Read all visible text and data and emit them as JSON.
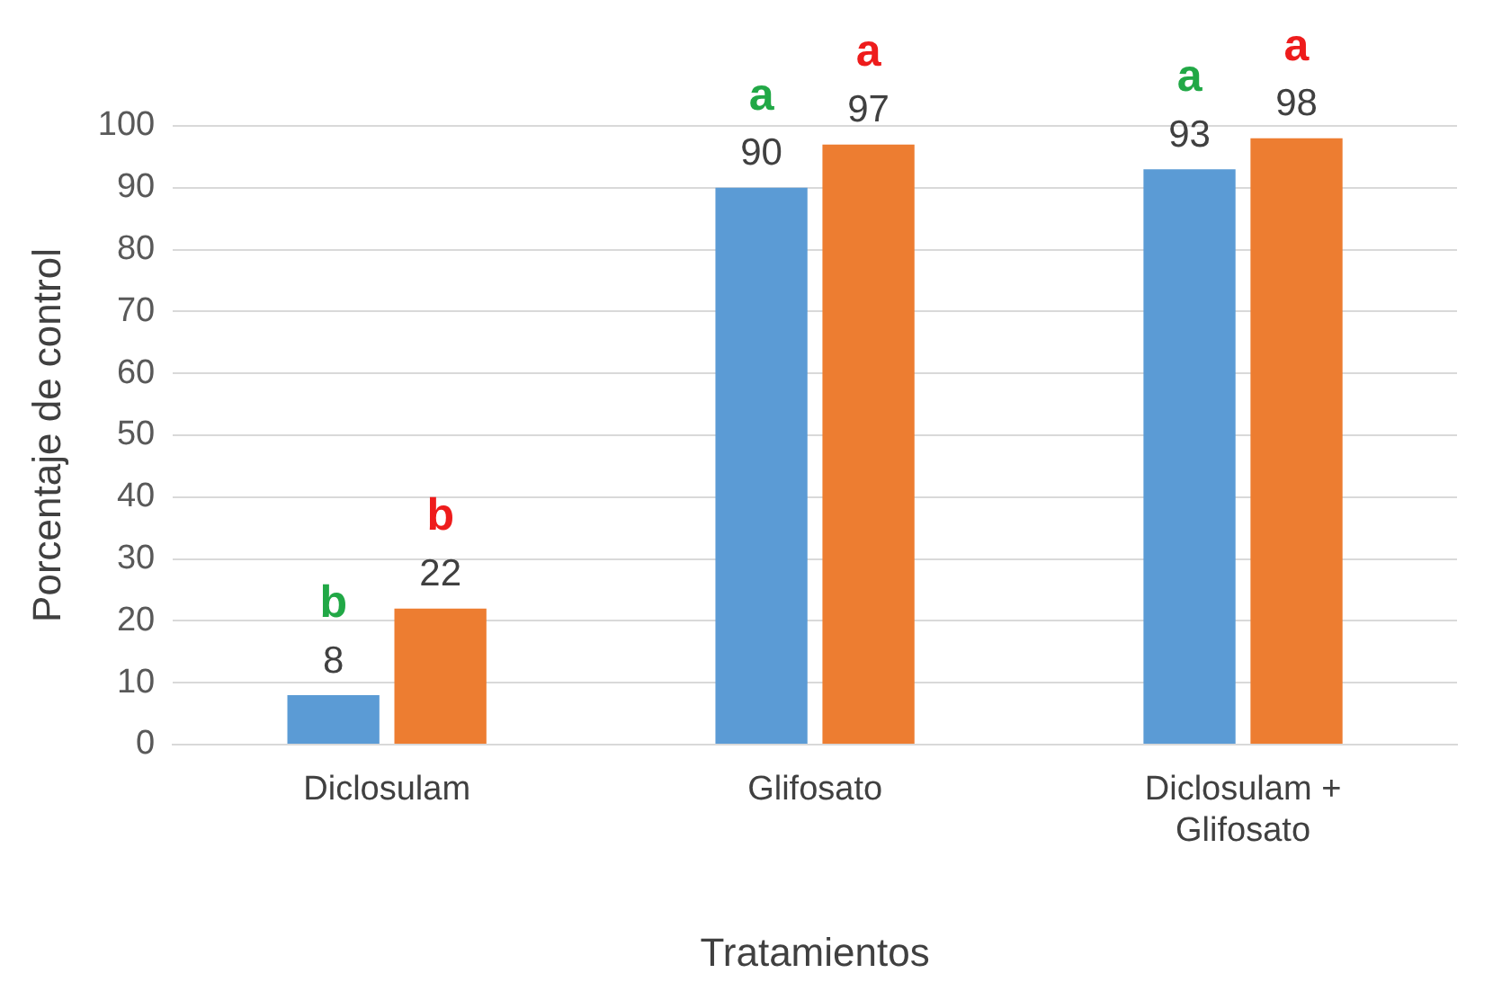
{
  "chart_data": {
    "type": "bar",
    "xlabel": "Tratamientos",
    "ylabel": "Porcentaje de control",
    "categories": [
      "Diclosulam",
      "Glifosato",
      "Diclosulam + Glifosato"
    ],
    "series": [
      {
        "color": "#5b9bd5",
        "values": [
          8,
          90,
          93
        ]
      },
      {
        "color": "#ed7d31",
        "values": [
          22,
          97,
          98
        ]
      }
    ],
    "ylim": [
      0,
      100
    ],
    "yticks": [
      0,
      10,
      20,
      30,
      40,
      50,
      60,
      70,
      80,
      90,
      100
    ],
    "grid": "y",
    "legend": false,
    "data_labels": true,
    "annotations": [
      "b",
      "b",
      "a",
      "a",
      "a",
      "a"
    ]
  }
}
